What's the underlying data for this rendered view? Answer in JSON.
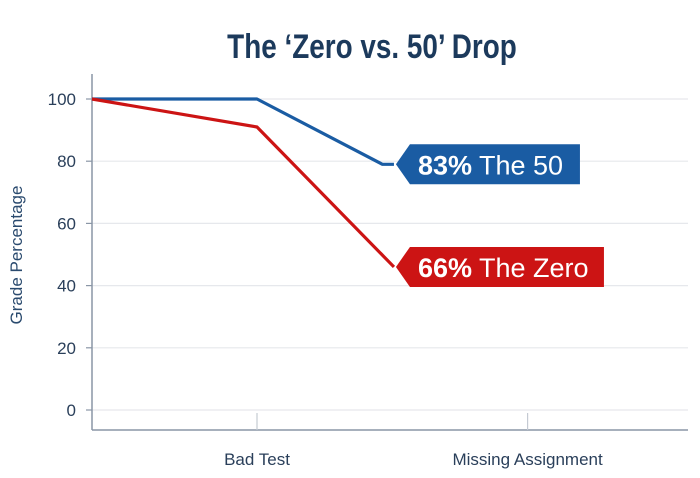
{
  "chart_data": {
    "type": "line",
    "title": "The ‘Zero vs. 50’ Drop",
    "xlabel": "",
    "ylabel": "Grade Percentage",
    "ylim": [
      0,
      100
    ],
    "yticks": [
      0,
      20,
      40,
      60,
      80,
      100
    ],
    "xlim": [
      0,
      3.6
    ],
    "xticks": [
      {
        "value": 1,
        "label": "Bad Test"
      },
      {
        "value": 2.64,
        "label": "Missing Assignment"
      }
    ],
    "grid": true,
    "series": [
      {
        "key": "fifty",
        "color": "#1a5ca3",
        "x": [
          0,
          1,
          1.76,
          1.83
        ],
        "y": [
          100,
          100,
          79,
          79
        ],
        "label_value": "83%",
        "label_text": "The 50"
      },
      {
        "key": "zero",
        "color": "#cc1414",
        "x": [
          0,
          1,
          1.83
        ],
        "y": [
          100,
          91,
          46
        ],
        "label_value": "66%",
        "label_text": "The Zero"
      }
    ]
  }
}
